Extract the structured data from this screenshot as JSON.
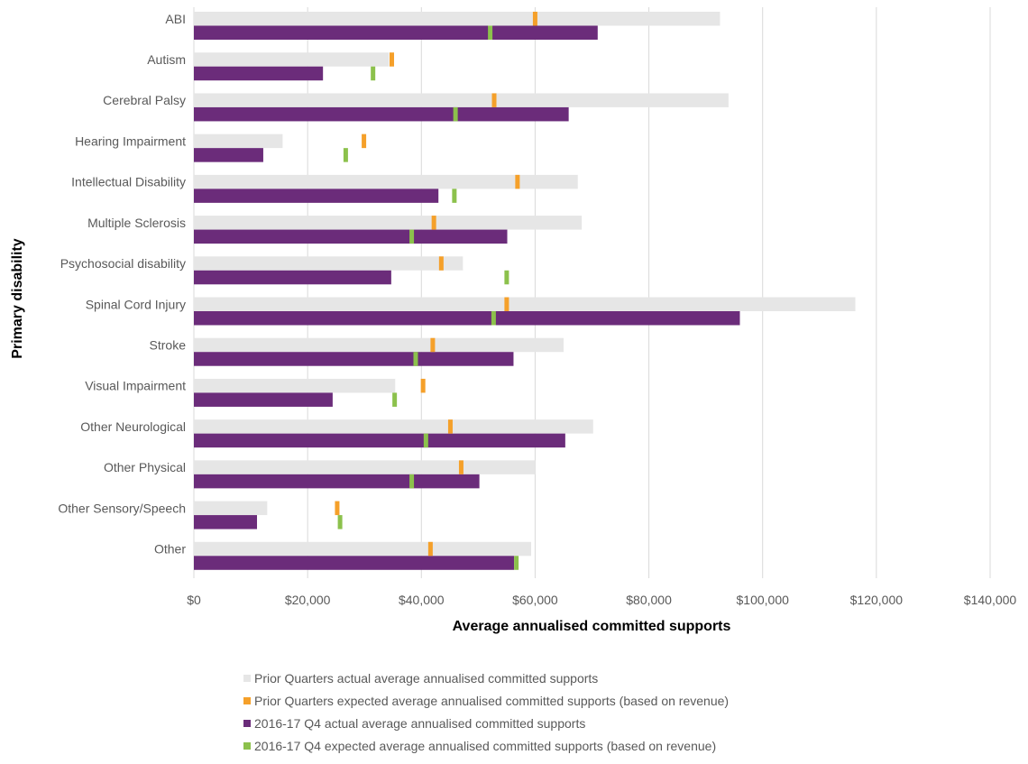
{
  "chart_data": {
    "type": "bar",
    "orientation": "horizontal",
    "ylabel": "Primary disability",
    "xlabel": "Average annualised committed supports",
    "xlim": [
      0,
      140000
    ],
    "x_ticks": [
      0,
      20000,
      40000,
      60000,
      80000,
      100000,
      120000,
      140000
    ],
    "x_tick_labels": [
      "$0",
      "$20,000",
      "$40,000",
      "$60,000",
      "$80,000",
      "$100,000",
      "$120,000",
      "$140,000"
    ],
    "grid": "vertical",
    "legend_position": "bottom",
    "categories": [
      "ABI",
      "Autism",
      "Cerebral Palsy",
      "Hearing Impairment",
      "Intellectual Disability",
      "Multiple Sclerosis",
      "Psychosocial disability",
      "Spinal Cord Injury",
      "Stroke",
      "Visual Impairment",
      "Other Neurological",
      "Other Physical",
      "Other Sensory/Speech",
      "Other"
    ],
    "series": [
      {
        "name": "Prior Quarters actual average annualised committed supports",
        "kind": "bar",
        "row": "upper",
        "color": "#e6e6e6",
        "values": [
          92500,
          34300,
          94000,
          15600,
          67500,
          68200,
          47300,
          116300,
          65000,
          35400,
          70200,
          60000,
          12900,
          59300
        ]
      },
      {
        "name": "Prior Quarters expected average annualised committed supports (based on revenue)",
        "kind": "marker",
        "row": "upper",
        "color": "#f5a02a",
        "values": [
          60000,
          34800,
          52800,
          29900,
          56900,
          42200,
          43500,
          55000,
          42000,
          40300,
          45100,
          47000,
          25200,
          41600
        ]
      },
      {
        "name": "2016-17 Q4 actual average annualised committed supports",
        "kind": "bar",
        "row": "lower",
        "color": "#6b2c7a",
        "values": [
          71000,
          22700,
          65900,
          12200,
          43000,
          55100,
          34700,
          96000,
          56200,
          24400,
          65300,
          50200,
          11100,
          56300
        ]
      },
      {
        "name": "2016-17 Q4 expected average annualised committed supports (based on revenue)",
        "kind": "marker",
        "row": "lower",
        "color": "#8cc14c",
        "values": [
          52100,
          31500,
          46000,
          26700,
          45800,
          38300,
          55000,
          52700,
          39000,
          35300,
          40800,
          38300,
          25700,
          56700
        ]
      }
    ]
  }
}
